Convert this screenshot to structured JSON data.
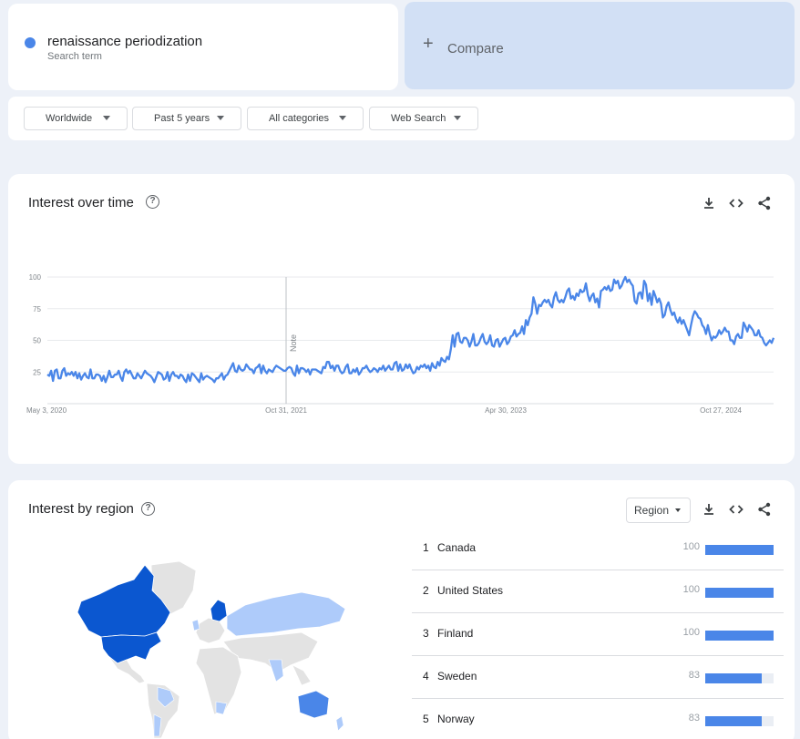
{
  "search_term": {
    "name": "renaissance periodization",
    "subtitle": "Search term",
    "color": "#4a86e8"
  },
  "compare": {
    "label": "Compare",
    "icon": "plus-icon"
  },
  "filters": [
    {
      "label": "Worldwide"
    },
    {
      "label": "Past 5 years"
    },
    {
      "label": "All categories"
    },
    {
      "label": "Web Search"
    }
  ],
  "interest_over_time": {
    "title": "Interest over time",
    "note_label": "Note",
    "icons": [
      "help-icon",
      "download-icon",
      "embed-icon",
      "share-icon"
    ]
  },
  "chart_data": {
    "type": "line",
    "title": "",
    "xlabel": "",
    "ylabel": "",
    "ylim": [
      0,
      100
    ],
    "yticks": [
      25,
      50,
      75,
      100
    ],
    "xtick_labels": [
      "May 3, 2020",
      "Oct 31, 2021",
      "Apr 30, 2023",
      "Oct 27, 2024"
    ],
    "x_start": "May 3, 2020",
    "x_interval": "week",
    "grid": true,
    "series": [
      {
        "name": "renaissance periodization",
        "color": "#4a86e8",
        "values": [
          23,
          22,
          26,
          18,
          26,
          27,
          20,
          20,
          26,
          28,
          22,
          24,
          23,
          25,
          22,
          25,
          20,
          24,
          19,
          22,
          24,
          21,
          20,
          27,
          20,
          20,
          23,
          23,
          22,
          18,
          22,
          17,
          21,
          26,
          21,
          21,
          23,
          23,
          26,
          21,
          18,
          25,
          27,
          24,
          26,
          23,
          20,
          20,
          24,
          22,
          20,
          23,
          26,
          24,
          23,
          22,
          20,
          17,
          21,
          25,
          24,
          23,
          19,
          20,
          25,
          18,
          23,
          25,
          22,
          22,
          20,
          23,
          22,
          19,
          17,
          23,
          18,
          24,
          23,
          21,
          19,
          17,
          24,
          19,
          21,
          22,
          21,
          20,
          19,
          17,
          20,
          20,
          22,
          24,
          19,
          22,
          23,
          26,
          29,
          32,
          26,
          25,
          30,
          27,
          26,
          27,
          31,
          29,
          27,
          27,
          24,
          28,
          29,
          31,
          24,
          30,
          26,
          24,
          27,
          26,
          25,
          28,
          30,
          29,
          28,
          27,
          26,
          26,
          28,
          29,
          28,
          24,
          22,
          30,
          24,
          28,
          28,
          27,
          25,
          27,
          23,
          27,
          27,
          27,
          26,
          25,
          24,
          29,
          28,
          33,
          33,
          28,
          30,
          26,
          30,
          30,
          26,
          24,
          25,
          29,
          31,
          24,
          24,
          27,
          25,
          28,
          23,
          25,
          28,
          28,
          30,
          27,
          25,
          26,
          28,
          27,
          25,
          28,
          27,
          30,
          26,
          28,
          30,
          27,
          27,
          32,
          33,
          26,
          31,
          26,
          27,
          31,
          28,
          31,
          27,
          24,
          25,
          29,
          27,
          30,
          29,
          31,
          28,
          30,
          26,
          32,
          29,
          28,
          33,
          30,
          36,
          34,
          33,
          37,
          35,
          43,
          54,
          45,
          55,
          56,
          49,
          48,
          52,
          52,
          50,
          45,
          49,
          55,
          46,
          46,
          48,
          52,
          55,
          49,
          47,
          49,
          54,
          46,
          45,
          50,
          51,
          45,
          48,
          51,
          52,
          47,
          49,
          53,
          54,
          58,
          53,
          55,
          56,
          61,
          55,
          66,
          62,
          68,
          71,
          84,
          79,
          71,
          78,
          77,
          80,
          82,
          80,
          82,
          78,
          76,
          84,
          88,
          82,
          80,
          82,
          80,
          84,
          89,
          91,
          83,
          85,
          82,
          87,
          85,
          90,
          88,
          89,
          95,
          86,
          81,
          85,
          87,
          80,
          83,
          76,
          89,
          90,
          92,
          90,
          93,
          89,
          90,
          98,
          95,
          97,
          91,
          93,
          97,
          100,
          96,
          98,
          95,
          93,
          81,
          79,
          87,
          88,
          83,
          97,
          94,
          81,
          87,
          78,
          89,
          85,
          80,
          83,
          79,
          68,
          70,
          77,
          80,
          74,
          70,
          72,
          67,
          64,
          68,
          63,
          66,
          62,
          58,
          54,
          62,
          69,
          73,
          71,
          68,
          67,
          62,
          60,
          55,
          62,
          55,
          50,
          53,
          52,
          54,
          58,
          55,
          57,
          60,
          57,
          57,
          50,
          50,
          47,
          53,
          55,
          52,
          52,
          64,
          61,
          57,
          62,
          60,
          58,
          54,
          54,
          58,
          53,
          52,
          48,
          46,
          48,
          50,
          48,
          52
        ]
      }
    ]
  },
  "interest_by_region": {
    "title": "Interest by region",
    "select_label": "Region",
    "icons": [
      "help-icon",
      "download-icon",
      "embed-icon",
      "share-icon"
    ],
    "rows": [
      {
        "rank": "1",
        "name": "Canada",
        "value": "100",
        "pct": 100
      },
      {
        "rank": "2",
        "name": "United States",
        "value": "100",
        "pct": 100
      },
      {
        "rank": "3",
        "name": "Finland",
        "value": "100",
        "pct": 100
      },
      {
        "rank": "4",
        "name": "Sweden",
        "value": "83",
        "pct": 83
      },
      {
        "rank": "5",
        "name": "Norway",
        "value": "83",
        "pct": 83
      }
    ],
    "map_colors": {
      "max": "#0b57d0",
      "high": "#4a86e8",
      "low": "#aecbfa",
      "none": "#e3e3e3"
    }
  }
}
